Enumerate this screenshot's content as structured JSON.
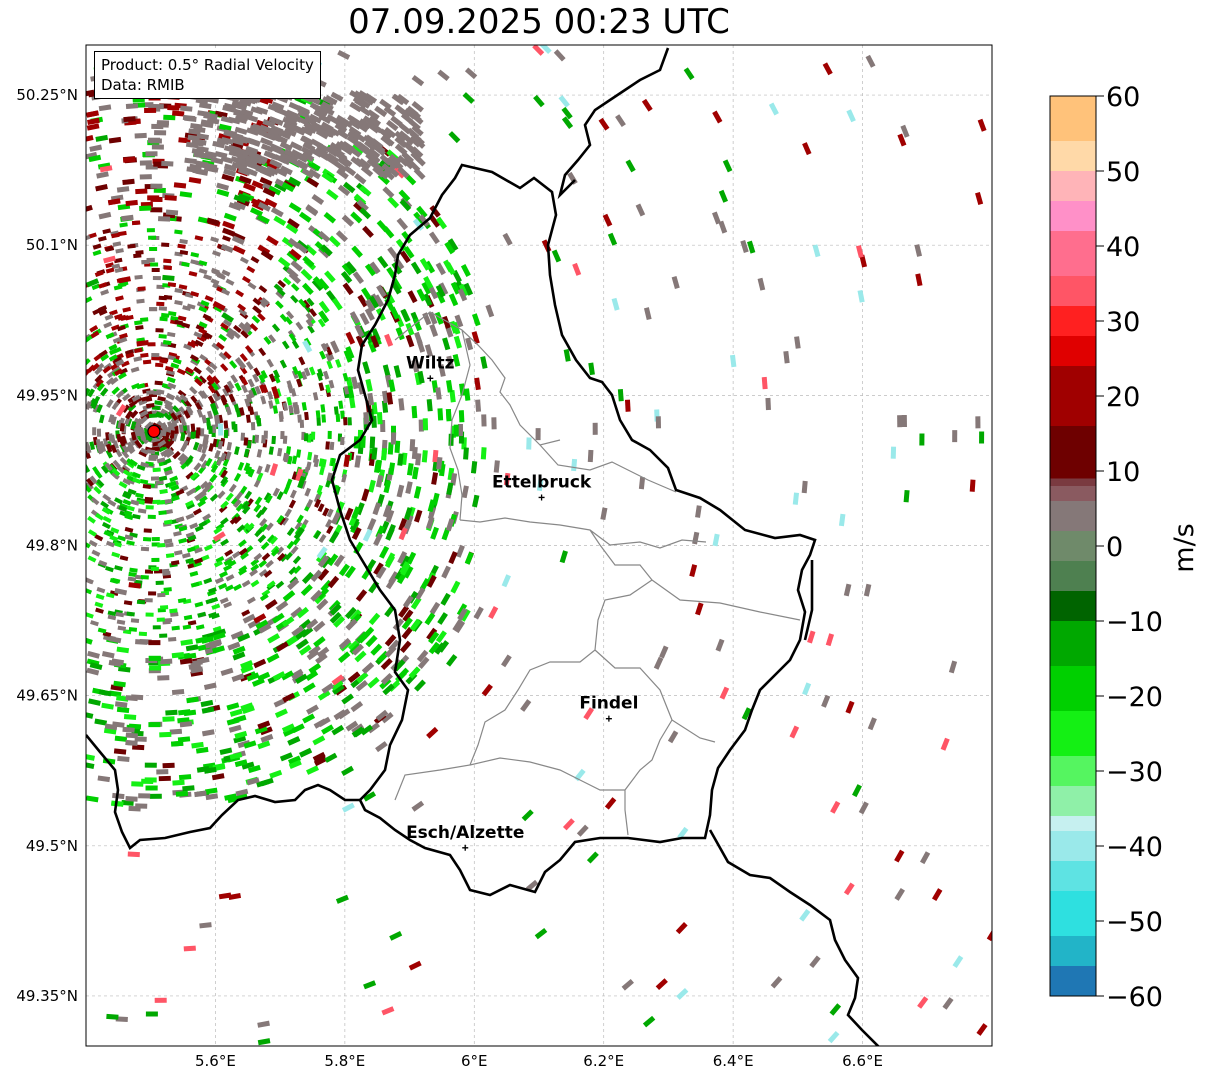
{
  "title": "07.09.2025 00:23 UTC",
  "info": {
    "product": "Product: 0.5° Radial Velocity",
    "data": "Data: RMIB"
  },
  "map": {
    "lon_range": [
      5.4,
      6.8
    ],
    "lat_range": [
      49.3,
      50.3
    ],
    "lon_ticks": [
      {
        "value": 5.6,
        "label": "5.6°E"
      },
      {
        "value": 5.8,
        "label": "5.8°E"
      },
      {
        "value": 6.0,
        "label": "6°E"
      },
      {
        "value": 6.2,
        "label": "6.2°E"
      },
      {
        "value": 6.4,
        "label": "6.4°E"
      },
      {
        "value": 6.6,
        "label": "6.6°E"
      }
    ],
    "lat_ticks": [
      {
        "value": 50.25,
        "label": "50.25°N"
      },
      {
        "value": 50.1,
        "label": "50.1°N"
      },
      {
        "value": 49.95,
        "label": "49.95°N"
      },
      {
        "value": 49.8,
        "label": "49.8°N"
      },
      {
        "value": 49.65,
        "label": "49.65°N"
      },
      {
        "value": 49.5,
        "label": "49.5°N"
      },
      {
        "value": 49.35,
        "label": "49.35°N"
      }
    ],
    "radar_site": {
      "lon": 5.505,
      "lat": 49.914
    },
    "cities": [
      {
        "name": "Wiltz",
        "lon": 5.932,
        "lat": 49.967
      },
      {
        "name": "Ettelbruck",
        "lon": 6.104,
        "lat": 49.848
      },
      {
        "name": "Findel",
        "lon": 6.208,
        "lat": 49.627
      },
      {
        "name": "Esch/Alzette",
        "lon": 5.986,
        "lat": 49.498
      }
    ],
    "border_color": "#000000",
    "canton_color": "#888888"
  },
  "colorbar": {
    "label": "m/s",
    "min": -60,
    "max": 60,
    "ticks": [
      {
        "value": 60,
        "label": "60"
      },
      {
        "value": 50,
        "label": "50"
      },
      {
        "value": 40,
        "label": "40"
      },
      {
        "value": 30,
        "label": "30"
      },
      {
        "value": 20,
        "label": "20"
      },
      {
        "value": 10,
        "label": "10"
      },
      {
        "value": 0,
        "label": "0"
      },
      {
        "value": -10,
        "label": "−10"
      },
      {
        "value": -20,
        "label": "−20"
      },
      {
        "value": -30,
        "label": "−30"
      },
      {
        "value": -40,
        "label": "−40"
      },
      {
        "value": -50,
        "label": "−50"
      },
      {
        "value": -60,
        "label": "−60"
      }
    ],
    "stops": [
      {
        "value": -60,
        "color": "#1f77b4"
      },
      {
        "value": -56,
        "color": "#22b4c8"
      },
      {
        "value": -52,
        "color": "#2ee0e0"
      },
      {
        "value": -46,
        "color": "#5ee3e3"
      },
      {
        "value": -42,
        "color": "#9ae9ea"
      },
      {
        "value": -38,
        "color": "#c6f0f0"
      },
      {
        "value": -36,
        "color": "#8ff0a8"
      },
      {
        "value": -32,
        "color": "#55f560"
      },
      {
        "value": -28,
        "color": "#14f014"
      },
      {
        "value": -22,
        "color": "#00d000"
      },
      {
        "value": -16,
        "color": "#00a800"
      },
      {
        "value": -10,
        "color": "#006400"
      },
      {
        "value": -6,
        "color": "#4e8050"
      },
      {
        "value": -2,
        "color": "#6f8a6a"
      },
      {
        "value": 2,
        "color": "#857878"
      },
      {
        "value": 6,
        "color": "#8a5a60"
      },
      {
        "value": 8,
        "color": "#7a3a40"
      },
      {
        "value": 9,
        "color": "#6e0000"
      },
      {
        "value": 16,
        "color": "#a00000"
      },
      {
        "value": 24,
        "color": "#e00000"
      },
      {
        "value": 28,
        "color": "#ff2020"
      },
      {
        "value": 32,
        "color": "#ff5566"
      },
      {
        "value": 36,
        "color": "#ff6e8e"
      },
      {
        "value": 42,
        "color": "#ff90c8"
      },
      {
        "value": 46,
        "color": "#ffb4b8"
      },
      {
        "value": 50,
        "color": "#ffd9a8"
      },
      {
        "value": 54,
        "color": "#ffc27a"
      },
      {
        "value": 60,
        "color": "#ff9a50"
      }
    ]
  }
}
